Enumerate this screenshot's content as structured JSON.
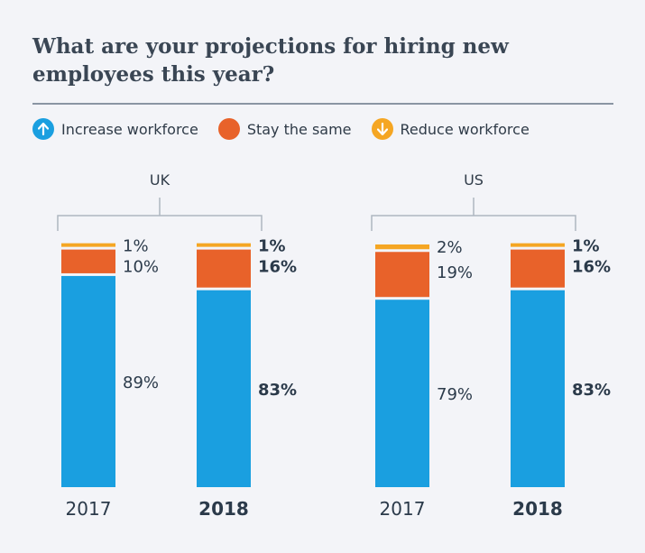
{
  "title": "What are your projections for hiring new employees this year?",
  "legend": [
    {
      "label": "Increase workforce",
      "color": "#1a9fe0",
      "icon": "arrow-up-icon"
    },
    {
      "label": "Stay the same",
      "color": "#e8622a",
      "icon": ""
    },
    {
      "label": "Reduce workforce",
      "color": "#f5a623",
      "icon": "arrow-down-icon"
    }
  ],
  "chart_data": {
    "type": "bar",
    "stacked": true,
    "groups": [
      {
        "name": "UK",
        "bars": [
          {
            "category": "2017",
            "emphasis": false,
            "values": {
              "increase": 89,
              "same": 10,
              "reduce": 1
            },
            "labels": {
              "increase": "89%",
              "same": "10%",
              "reduce": "1%"
            }
          },
          {
            "category": "2018",
            "emphasis": true,
            "values": {
              "increase": 83,
              "same": 16,
              "reduce": 1
            },
            "labels": {
              "increase": "83%",
              "same": "16%",
              "reduce": "1%"
            }
          }
        ]
      },
      {
        "name": "US",
        "bars": [
          {
            "category": "2017",
            "emphasis": false,
            "values": {
              "increase": 79,
              "same": 19,
              "reduce": 2
            },
            "labels": {
              "increase": "79%",
              "same": "19%",
              "reduce": "2%"
            }
          },
          {
            "category": "2018",
            "emphasis": true,
            "values": {
              "increase": 83,
              "same": 16,
              "reduce": 1
            },
            "labels": {
              "increase": "83%",
              "same": "16%",
              "reduce": "1%"
            }
          }
        ]
      }
    ],
    "series": [
      {
        "key": "increase",
        "name": "Increase workforce",
        "color": "#1a9fe0"
      },
      {
        "key": "same",
        "name": "Stay the same",
        "color": "#e8622a"
      },
      {
        "key": "reduce",
        "name": "Reduce workforce",
        "color": "#f5a623"
      }
    ],
    "ylim": [
      0,
      100
    ],
    "legend_position": "top-left"
  }
}
